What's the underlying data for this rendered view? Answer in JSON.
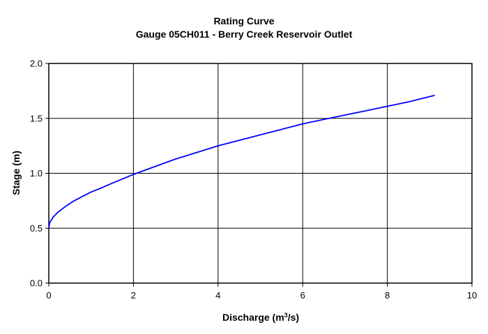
{
  "chart_data": {
    "type": "line",
    "title": "Rating Curve",
    "subtitle": "Gauge 05CH011 - Berry Creek Reservoir Outlet",
    "xlabel": "Discharge (m³/s)",
    "xlabel_main": "Discharge (m",
    "xlabel_sup": "3",
    "xlabel_tail": "/s)",
    "ylabel": "Stage (m)",
    "xlim": [
      0,
      10
    ],
    "ylim": [
      0,
      2.0
    ],
    "xticks": [
      0,
      2,
      4,
      6,
      8,
      10
    ],
    "xtick_labels": [
      "0",
      "2",
      "4",
      "6",
      "8",
      "10"
    ],
    "yticks": [
      0,
      0.5,
      1.0,
      1.5,
      2.0
    ],
    "ytick_labels": [
      "0.0",
      "0.5",
      "1.0",
      "1.5",
      "2.0"
    ],
    "grid": true,
    "series": [
      {
        "color": "#0000ff",
        "x": [
          0,
          0.02,
          0.1,
          0.2,
          0.4,
          0.6,
          0.8,
          1.0,
          1.2,
          1.5,
          2.0,
          2.5,
          3.0,
          3.5,
          4.0,
          4.5,
          5.0,
          5.5,
          6.0,
          6.5,
          7.0,
          7.5,
          8.0,
          8.5,
          9.12
        ],
        "y": [
          0.5,
          0.55,
          0.6,
          0.64,
          0.7,
          0.75,
          0.79,
          0.83,
          0.86,
          0.91,
          0.99,
          1.06,
          1.13,
          1.19,
          1.25,
          1.3,
          1.35,
          1.4,
          1.45,
          1.49,
          1.53,
          1.57,
          1.61,
          1.65,
          1.71
        ]
      }
    ]
  }
}
